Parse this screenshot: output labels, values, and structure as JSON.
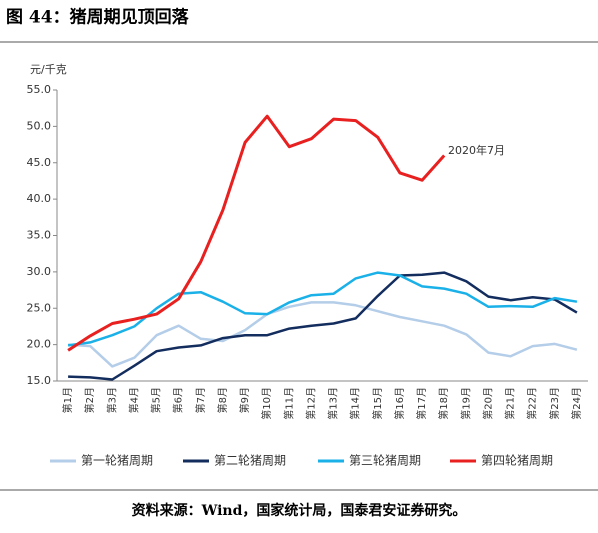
{
  "chart_data": {
    "type": "line",
    "title": "图 44：猪周期见顶回落",
    "ylabel": "元/千克",
    "annotation": "2020年7月",
    "source": "资料来源：Wind，国家统计局，国泰君安证券研究。",
    "categories": [
      "第1月",
      "第2月",
      "第3月",
      "第4月",
      "第5月",
      "第6月",
      "第7月",
      "第8月",
      "第9月",
      "第10月",
      "第11月",
      "第12月",
      "第13月",
      "第14月",
      "第15月",
      "第16月",
      "第17月",
      "第18月",
      "第19月",
      "第20月",
      "第21月",
      "第22月",
      "第23月",
      "第24月"
    ],
    "ylim": [
      15,
      55
    ],
    "yticks": [
      {
        "value": 15,
        "label": "15.0"
      },
      {
        "value": 20,
        "label": "20.0"
      },
      {
        "value": 25,
        "label": "25.0"
      },
      {
        "value": 30,
        "label": "30.0"
      },
      {
        "value": 35,
        "label": "35.0"
      },
      {
        "value": 40,
        "label": "40.0"
      },
      {
        "value": 45,
        "label": "45.0"
      },
      {
        "value": 50,
        "label": "50.0"
      },
      {
        "value": 55,
        "label": "55.0"
      }
    ],
    "legend": "bottom",
    "series": [
      {
        "name": "第一轮猪周期",
        "color": "#b4cde8",
        "values": [
          20.0,
          19.8,
          17.0,
          18.2,
          21.3,
          22.6,
          20.8,
          20.5,
          22.0,
          24.2,
          25.2,
          25.8,
          25.8,
          25.4,
          24.6,
          23.8,
          23.2,
          22.6,
          21.4,
          18.9,
          18.4,
          19.8,
          20.1,
          19.3
        ]
      },
      {
        "name": "第二轮猪周期",
        "color": "#132d5e",
        "values": [
          15.6,
          15.5,
          15.2,
          17.1,
          19.1,
          19.6,
          19.9,
          20.9,
          21.3,
          21.3,
          22.2,
          22.6,
          22.9,
          23.6,
          26.7,
          29.5,
          29.6,
          29.9,
          28.7,
          26.6,
          26.1,
          26.5,
          26.2,
          24.4
        ]
      },
      {
        "name": "第三轮猪周期",
        "color": "#1ab0e8",
        "values": [
          19.9,
          20.3,
          21.3,
          22.5,
          25.0,
          27.0,
          27.2,
          25.9,
          24.3,
          24.2,
          25.8,
          26.8,
          27.0,
          29.1,
          29.9,
          29.5,
          28.0,
          27.7,
          27.0,
          25.2,
          25.3,
          25.2,
          26.4,
          25.9
        ]
      },
      {
        "name": "第四轮猪周期",
        "color": "#e8201f",
        "values": [
          19.2,
          21.2,
          22.9,
          23.5,
          24.2,
          26.3,
          31.4,
          38.5,
          47.8,
          51.4,
          47.2,
          48.3,
          51.0,
          50.8,
          48.5,
          43.6,
          42.6,
          46.0,
          null,
          null,
          null,
          null,
          null,
          null
        ]
      }
    ]
  }
}
